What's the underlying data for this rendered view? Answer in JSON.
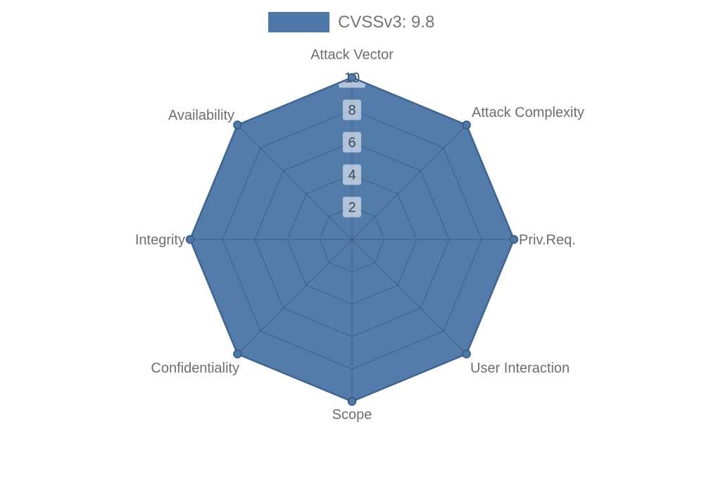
{
  "legend": {
    "label": "CVSSv3: 9.8"
  },
  "chart_data": {
    "type": "radar",
    "title": "CVSSv3: 9.8",
    "categories": [
      "Attack Vector",
      "Attack Complexity",
      "Priv.Req.",
      "User Interaction",
      "Scope",
      "Confidentiality",
      "Integrity",
      "Availability"
    ],
    "series": [
      {
        "name": "CVSSv3: 9.8",
        "values": [
          10,
          10,
          10,
          10,
          10,
          10,
          10,
          10
        ]
      }
    ],
    "ticks": [
      2,
      4,
      6,
      8,
      10
    ],
    "rmin": 0,
    "rmax": 10,
    "grid": true,
    "legend_position": "top",
    "colors": {
      "series_fill": "#4d78a7",
      "series_stroke": "#3d6593",
      "marker_fill": "#4d78a7",
      "marker_stroke": "#35597f",
      "grid_line": "#999999",
      "grid_overlay": "rgba(15,25,40,0.25)",
      "axis_label": "#6e6e6e",
      "tick_label": "#3f4a5a",
      "tick_backdrop": "rgba(255,255,255,0.55)",
      "legend_text": "#757575",
      "background": "#ffffff"
    }
  }
}
